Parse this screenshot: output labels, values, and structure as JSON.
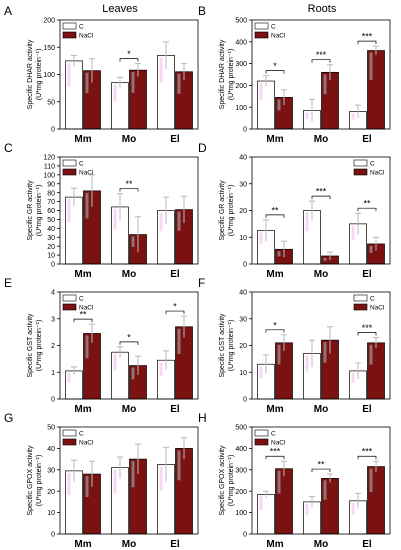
{
  "figure": {
    "column_titles": [
      "Leaves",
      "Roots"
    ]
  },
  "chart_data": [
    {
      "type": "bar",
      "panel": "A",
      "title": "",
      "xlabel": "",
      "ylabel": "Specific DHAR activity\n(U*mg protein⁻¹)",
      "categories": [
        "Mm",
        "Mo",
        "El"
      ],
      "series": [
        {
          "name": "C",
          "values": [
            125,
            85,
            135
          ],
          "errors": [
            10,
            10,
            25
          ]
        },
        {
          "name": "NaCl",
          "values": [
            107,
            108,
            105
          ],
          "errors": [
            22,
            12,
            15
          ]
        }
      ],
      "significance": [
        "",
        "*",
        ""
      ],
      "ylim": [
        0,
        200
      ],
      "yticks": [
        0,
        50,
        100,
        150,
        200
      ],
      "legend": "top-left",
      "grid": false
    },
    {
      "type": "bar",
      "panel": "B",
      "title": "",
      "xlabel": "",
      "ylabel": "Specific DHAR activity\n(U*mg protein⁻¹)",
      "categories": [
        "Mm",
        "Mo",
        "El"
      ],
      "series": [
        {
          "name": "C",
          "values": [
            220,
            85,
            80
          ],
          "errors": [
            25,
            50,
            30
          ]
        },
        {
          "name": "NaCl",
          "values": [
            145,
            260,
            360
          ],
          "errors": [
            35,
            35,
            20
          ]
        }
      ],
      "significance": [
        "*",
        "***",
        "***"
      ],
      "ylim": [
        0,
        500
      ],
      "yticks": [
        0,
        100,
        200,
        300,
        400,
        500
      ],
      "legend": "top-left",
      "grid": false
    },
    {
      "type": "bar",
      "panel": "C",
      "title": "",
      "xlabel": "",
      "ylabel": "Specific GR activity\n(U*mg protein⁻¹)",
      "categories": [
        "Mm",
        "Mo",
        "El"
      ],
      "series": [
        {
          "name": "C",
          "values": [
            75,
            64,
            60
          ],
          "errors": [
            10,
            15,
            15
          ]
        },
        {
          "name": "NaCl",
          "values": [
            82,
            33,
            61
          ],
          "errors": [
            18,
            20,
            15
          ]
        }
      ],
      "significance": [
        "",
        "**",
        ""
      ],
      "ylim": [
        0,
        120
      ],
      "yticks": [
        0,
        10,
        20,
        30,
        40,
        50,
        60,
        70,
        80,
        90,
        100,
        110,
        120
      ],
      "legend": "top-left",
      "grid": false
    },
    {
      "type": "bar",
      "panel": "D",
      "title": "",
      "xlabel": "",
      "ylabel": "Specific GR activity\n(U*mg protein⁻¹)",
      "categories": [
        "Mm",
        "Mo",
        "El"
      ],
      "series": [
        {
          "name": "C",
          "values": [
            12.5,
            20,
            15
          ],
          "errors": [
            4,
            3.5,
            4
          ]
        },
        {
          "name": "NaCl",
          "values": [
            5.5,
            3,
            7.5
          ],
          "errors": [
            3,
            1.5,
            2.5
          ]
        }
      ],
      "significance": [
        "**",
        "***",
        "**"
      ],
      "ylim": [
        0,
        40
      ],
      "yticks": [
        0,
        10,
        20,
        30,
        40
      ],
      "legend": "top-right",
      "grid": false
    },
    {
      "type": "bar",
      "panel": "E",
      "title": "",
      "xlabel": "",
      "ylabel": "Specific GST activity\n(U*mg protein⁻¹)",
      "categories": [
        "Mm",
        "Mo",
        "El"
      ],
      "series": [
        {
          "name": "C",
          "values": [
            1.05,
            1.75,
            1.45
          ],
          "errors": [
            0.15,
            0.2,
            0.35
          ]
        },
        {
          "name": "NaCl",
          "values": [
            2.45,
            1.25,
            2.7
          ],
          "errors": [
            0.35,
            0.35,
            0.4
          ]
        }
      ],
      "significance": [
        "**",
        "*",
        "*"
      ],
      "ylim": [
        0,
        4
      ],
      "yticks": [
        0,
        1,
        2,
        3,
        4
      ],
      "legend": "top-left",
      "grid": false
    },
    {
      "type": "bar",
      "panel": "F",
      "title": "",
      "xlabel": "",
      "ylabel": "Specific GST activity\n(U*mg protein⁻¹)",
      "categories": [
        "Mm",
        "Mo",
        "El"
      ],
      "series": [
        {
          "name": "C",
          "values": [
            13,
            17,
            10.5
          ],
          "errors": [
            3.5,
            5,
            3
          ]
        },
        {
          "name": "NaCl",
          "values": [
            21,
            22,
            21
          ],
          "errors": [
            3,
            5,
            2
          ]
        }
      ],
      "significance": [
        "*",
        "",
        "***"
      ],
      "ylim": [
        0,
        40
      ],
      "yticks": [
        0,
        10,
        20,
        30,
        40
      ],
      "legend": "top-right",
      "grid": false
    },
    {
      "type": "bar",
      "panel": "G",
      "title": "",
      "xlabel": "",
      "ylabel": "Specific GPOX activity\n(U*mg protein⁻¹)",
      "categories": [
        "Mm",
        "Mo",
        "El"
      ],
      "series": [
        {
          "name": "C",
          "values": [
            29.5,
            31,
            32.5
          ],
          "errors": [
            5,
            5,
            8
          ]
        },
        {
          "name": "NaCl",
          "values": [
            28,
            35,
            40
          ],
          "errors": [
            6,
            7,
            5
          ]
        }
      ],
      "significance": [
        "",
        "",
        ""
      ],
      "ylim": [
        0,
        50
      ],
      "yticks": [
        0,
        10,
        20,
        30,
        40,
        50
      ],
      "legend": "top-left",
      "grid": false
    },
    {
      "type": "bar",
      "panel": "H",
      "title": "",
      "xlabel": "",
      "ylabel": "Specific GPOX activity\n(U*mg protein⁻¹)",
      "categories": [
        "Mm",
        "Mo",
        "El"
      ],
      "series": [
        {
          "name": "C",
          "values": [
            185,
            150,
            155
          ],
          "errors": [
            15,
            25,
            35
          ]
        },
        {
          "name": "NaCl",
          "values": [
            305,
            260,
            315
          ],
          "errors": [
            35,
            20,
            25
          ]
        }
      ],
      "significance": [
        "***",
        "**",
        "***"
      ],
      "ylim": [
        0,
        500
      ],
      "yticks": [
        0,
        100,
        200,
        300,
        400,
        500
      ],
      "legend": "top-left",
      "grid": false
    }
  ],
  "colors": {
    "control_fill": "#ffffff",
    "nacl_fill": "#7a1212",
    "bar_stroke": "#000000",
    "error_bar": "#b8b8b8",
    "highlight_magenta": "#f0a6e8",
    "highlight_cyan": "#a8ecf0"
  }
}
